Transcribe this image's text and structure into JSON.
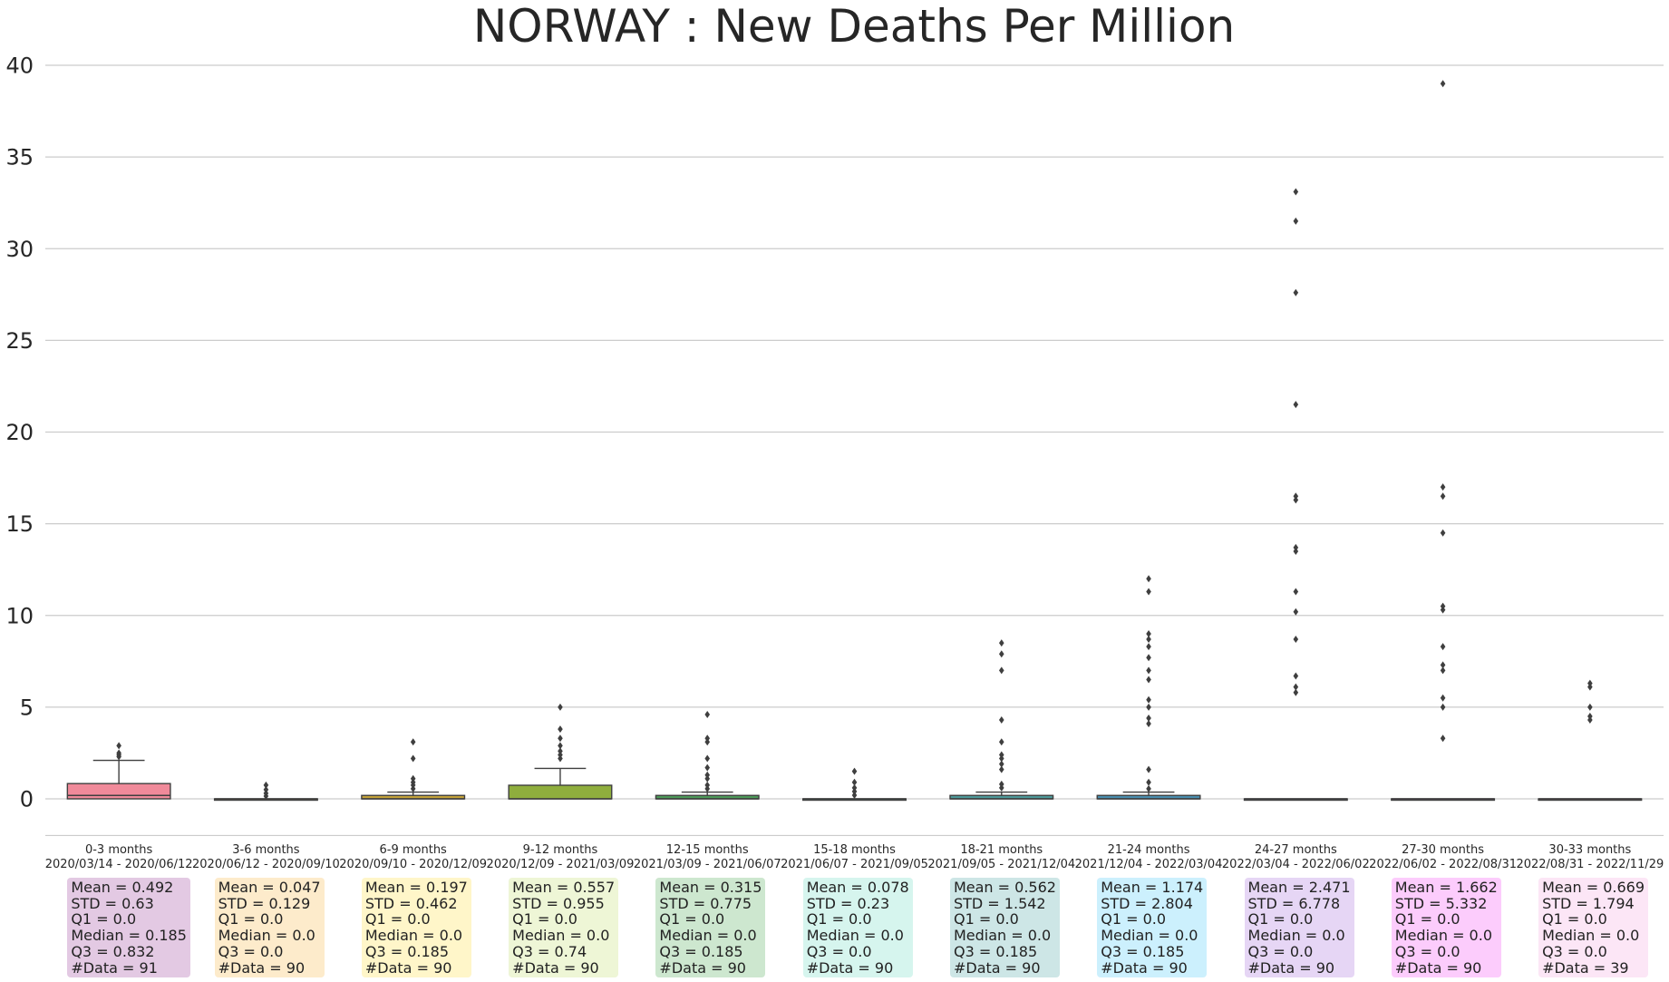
{
  "chart_data": {
    "type": "boxplot",
    "title": "NORWAY : New Deaths Per Million",
    "xlabel": "",
    "ylabel": "",
    "ylim": [
      -2,
      40
    ],
    "yticks": [
      0,
      5,
      10,
      15,
      20,
      25,
      30,
      35,
      40
    ],
    "grid": "horizontal",
    "groups": [
      {
        "label": "0-3 months",
        "dates": "2020/03/14 - 2020/06/12",
        "color": "#F08A9A",
        "box_color": "#E3C9E3",
        "q1": 0.0,
        "median": 0.185,
        "q3": 0.832,
        "whisker_low": 0.0,
        "whisker_high": 2.1,
        "outliers": [
          2.3,
          2.4,
          2.5,
          2.9
        ],
        "stats": {
          "mean": "Mean = 0.492",
          "std": "STD = 0.63",
          "q1": "Q1 = 0.0",
          "median": "Median = 0.185",
          "q3": "Q3 = 0.832",
          "n": "#Data = 91"
        }
      },
      {
        "label": "3-6 months",
        "dates": "2020/06/12 - 2020/09/10",
        "color": "#E5A15E",
        "box_color": "#FDEBCB",
        "q1": 0.0,
        "median": 0.0,
        "q3": 0.0,
        "whisker_low": 0.0,
        "whisker_high": 0.0,
        "outliers": [
          0.15,
          0.3,
          0.5,
          0.75
        ],
        "stats": {
          "mean": "Mean = 0.047",
          "std": "STD = 0.129",
          "q1": "Q1 = 0.0",
          "median": "Median = 0.0",
          "q3": "Q3 = 0.0",
          "n": "#Data = 90"
        }
      },
      {
        "label": "6-9 months",
        "dates": "2020/09/10 - 2020/12/09",
        "color": "#C5A33A",
        "box_color": "#FFF6C9",
        "q1": 0.0,
        "median": 0.0,
        "q3": 0.185,
        "whisker_low": 0.0,
        "whisker_high": 0.37,
        "outliers": [
          0.55,
          0.75,
          0.9,
          1.1,
          2.2,
          3.1
        ],
        "stats": {
          "mean": "Mean = 0.197",
          "std": "STD = 0.462",
          "q1": "Q1 = 0.0",
          "median": "Median = 0.0",
          "q3": "Q3 = 0.185",
          "n": "#Data = 90"
        }
      },
      {
        "label": "9-12 months",
        "dates": "2020/12/09 - 2021/03/09",
        "color": "#8FAE3D",
        "box_color": "#EEF6D6",
        "q1": 0.0,
        "median": 0.0,
        "q3": 0.74,
        "whisker_low": 0.0,
        "whisker_high": 1.66,
        "outliers": [
          2.2,
          2.4,
          2.6,
          2.9,
          3.3,
          3.8,
          5.0
        ],
        "stats": {
          "mean": "Mean = 0.557",
          "std": "STD = 0.955",
          "q1": "Q1 = 0.0",
          "median": "Median = 0.0",
          "q3": "Q3 = 0.74",
          "n": "#Data = 90"
        }
      },
      {
        "label": "12-15 months",
        "dates": "2021/03/09 - 2021/06/07",
        "color": "#4E9A5A",
        "box_color": "#CDE7CF",
        "q1": 0.0,
        "median": 0.0,
        "q3": 0.185,
        "whisker_low": 0.0,
        "whisker_high": 0.37,
        "outliers": [
          0.55,
          0.75,
          1.1,
          1.3,
          1.7,
          2.2,
          3.1,
          3.3,
          4.6
        ],
        "stats": {
          "mean": "Mean = 0.315",
          "std": "STD = 0.775",
          "q1": "Q1 = 0.0",
          "median": "Median = 0.0",
          "q3": "Q3 = 0.185",
          "n": "#Data = 90"
        }
      },
      {
        "label": "15-18 months",
        "dates": "2021/06/07 - 2021/09/05",
        "color": "#4AA08A",
        "box_color": "#D6F5EE",
        "q1": 0.0,
        "median": 0.0,
        "q3": 0.0,
        "whisker_low": 0.0,
        "whisker_high": 0.0,
        "outliers": [
          0.2,
          0.4,
          0.6,
          0.9,
          1.5
        ],
        "stats": {
          "mean": "Mean = 0.078",
          "std": "STD = 0.23",
          "q1": "Q1 = 0.0",
          "median": "Median = 0.0",
          "q3": "Q3 = 0.0",
          "n": "#Data = 90"
        }
      },
      {
        "label": "18-21 months",
        "dates": "2021/09/05 - 2021/12/04",
        "color": "#4E9A9A",
        "box_color": "#CDE6E6",
        "q1": 0.0,
        "median": 0.0,
        "q3": 0.185,
        "whisker_low": 0.0,
        "whisker_high": 0.37,
        "outliers": [
          0.6,
          0.8,
          1.6,
          1.9,
          2.2,
          2.4,
          3.1,
          4.3,
          7.0,
          7.9,
          8.5
        ],
        "stats": {
          "mean": "Mean = 0.562",
          "std": "STD = 1.542",
          "q1": "Q1 = 0.0",
          "median": "Median = 0.0",
          "q3": "Q3 = 0.185",
          "n": "#Data = 90"
        }
      },
      {
        "label": "21-24 months",
        "dates": "2021/12/04 - 2022/03/04",
        "color": "#4A8FB0",
        "box_color": "#CCF0FD",
        "q1": 0.0,
        "median": 0.0,
        "q3": 0.185,
        "whisker_low": 0.0,
        "whisker_high": 0.37,
        "outliers": [
          0.55,
          0.9,
          1.6,
          4.1,
          4.4,
          5.0,
          5.4,
          6.5,
          7.0,
          7.7,
          8.3,
          8.7,
          9.0,
          11.3,
          12.0
        ],
        "stats": {
          "mean": "Mean = 1.174",
          "std": "STD = 2.804",
          "q1": "Q1 = 0.0",
          "median": "Median = 0.0",
          "q3": "Q3 = 0.185",
          "n": "#Data = 90"
        }
      },
      {
        "label": "24-27 months",
        "dates": "2022/03/04 - 2022/06/02",
        "color": "#8E7BC8",
        "box_color": "#E6D6F5",
        "q1": 0.0,
        "median": 0.0,
        "q3": 0.0,
        "whisker_low": 0.0,
        "whisker_high": 0.0,
        "outliers": [
          5.8,
          6.1,
          6.7,
          8.7,
          10.2,
          11.3,
          13.5,
          13.7,
          16.3,
          16.5,
          21.5,
          27.6,
          31.5,
          33.1
        ],
        "stats": {
          "mean": "Mean = 2.471",
          "std": "STD = 6.778",
          "q1": "Q1 = 0.0",
          "median": "Median = 0.0",
          "q3": "Q3 = 0.0",
          "n": "#Data = 90"
        }
      },
      {
        "label": "27-30 months",
        "dates": "2022/06/02 - 2022/08/31",
        "color": "#D06FD0",
        "box_color": "#FCCCFC",
        "q1": 0.0,
        "median": 0.0,
        "q3": 0.0,
        "whisker_low": 0.0,
        "whisker_high": 0.0,
        "outliers": [
          3.3,
          5.0,
          5.5,
          7.0,
          7.3,
          8.3,
          10.3,
          10.5,
          14.5,
          16.5,
          17.0,
          39.0
        ],
        "stats": {
          "mean": "Mean = 1.662",
          "std": "STD = 5.332",
          "q1": "Q1 = 0.0",
          "median": "Median = 0.0",
          "q3": "Q3 = 0.0",
          "n": "#Data = 90"
        }
      },
      {
        "label": "30-33 months",
        "dates": "2022/08/31 - 2022/11/29",
        "color": "#E78AC3",
        "box_color": "#FCE6F6",
        "q1": 0.0,
        "median": 0.0,
        "q3": 0.0,
        "whisker_low": 0.0,
        "whisker_high": 0.0,
        "outliers": [
          4.3,
          4.5,
          5.0,
          6.1,
          6.3
        ],
        "stats": {
          "mean": "Mean = 0.669",
          "std": "STD = 1.794",
          "q1": "Q1 = 0.0",
          "median": "Median = 0.0",
          "q3": "Q3 = 0.0",
          "n": "#Data = 39"
        }
      }
    ]
  }
}
